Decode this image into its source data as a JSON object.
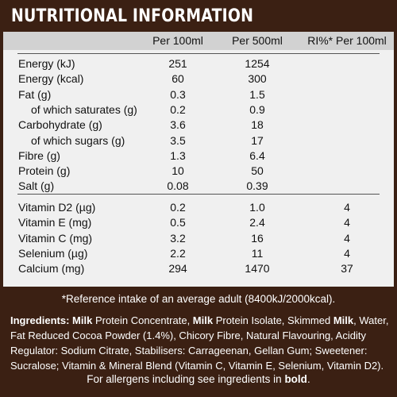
{
  "title": "NUTRITIONAL INFORMATION",
  "columns": [
    "",
    "Per 100ml",
    "Per 500ml",
    "RI%* Per 100ml"
  ],
  "nutrients": [
    {
      "label": "Energy (kJ)",
      "per100": "251",
      "per500": "1254",
      "ri": "",
      "indent": false
    },
    {
      "label": "Energy (kcal)",
      "per100": "60",
      "per500": "300",
      "ri": "",
      "indent": false
    },
    {
      "label": "Fat (g)",
      "per100": "0.3",
      "per500": "1.5",
      "ri": "",
      "indent": false
    },
    {
      "label": "of which saturates (g)",
      "per100": "0.2",
      "per500": "0.9",
      "ri": "",
      "indent": true
    },
    {
      "label": "Carbohydrate (g)",
      "per100": "3.6",
      "per500": "18",
      "ri": "",
      "indent": false
    },
    {
      "label": "of which sugars (g)",
      "per100": "3.5",
      "per500": "17",
      "ri": "",
      "indent": true
    },
    {
      "label": "Fibre (g)",
      "per100": "1.3",
      "per500": "6.4",
      "ri": "",
      "indent": false
    },
    {
      "label": "Protein (g)",
      "per100": "10",
      "per500": "50",
      "ri": "",
      "indent": false
    },
    {
      "label": "Salt (g)",
      "per100": "0.08",
      "per500": "0.39",
      "ri": "",
      "indent": false
    }
  ],
  "vitamins": [
    {
      "label": "Vitamin D2 (µg)",
      "per100": "0.2",
      "per500": "1.0",
      "ri": "4"
    },
    {
      "label": "Vitamin E (mg)",
      "per100": "0.5",
      "per500": "2.4",
      "ri": "4"
    },
    {
      "label": "Vitamin C (mg)",
      "per100": "3.2",
      "per500": "16",
      "ri": "4"
    },
    {
      "label": "Selenium (µg)",
      "per100": "2.2",
      "per500": "11",
      "ri": "4"
    },
    {
      "label": "Calcium (mg)",
      "per100": "294",
      "per500": "1470",
      "ri": "37"
    }
  ],
  "footnote": "*Reference intake of an average adult (8400kJ/2000kcal).",
  "ingredients_lines": [
    [
      {
        "t": "Ingredients:",
        "b": true
      },
      {
        "t": " ",
        "b": false
      },
      {
        "t": "Milk",
        "b": true
      },
      {
        "t": " Protein Concentrate, ",
        "b": false
      },
      {
        "t": "Milk",
        "b": true
      },
      {
        "t": " Protein Isolate, Skimmed ",
        "b": false
      },
      {
        "t": "Milk",
        "b": true
      },
      {
        "t": ", Water,",
        "b": false
      }
    ],
    [
      {
        "t": "Fat Reduced Cocoa Powder (1.4%), Chicory Fibre, Natural Flavouring, Acidity",
        "b": false
      }
    ],
    [
      {
        "t": "Regulator: Sodium Citrate, Stabilisers: Carrageenan, Gellan Gum; Sweetener:",
        "b": false
      }
    ],
    [
      {
        "t": "Sucralose; Vitamin & Mineral Blend (Vitamin C, Vitamin E, Selenium, Vitamin D2).",
        "b": false
      }
    ]
  ],
  "allergen": {
    "prefix": "For allergens including see ingredients in ",
    "bold": "bold",
    "suffix": "."
  }
}
